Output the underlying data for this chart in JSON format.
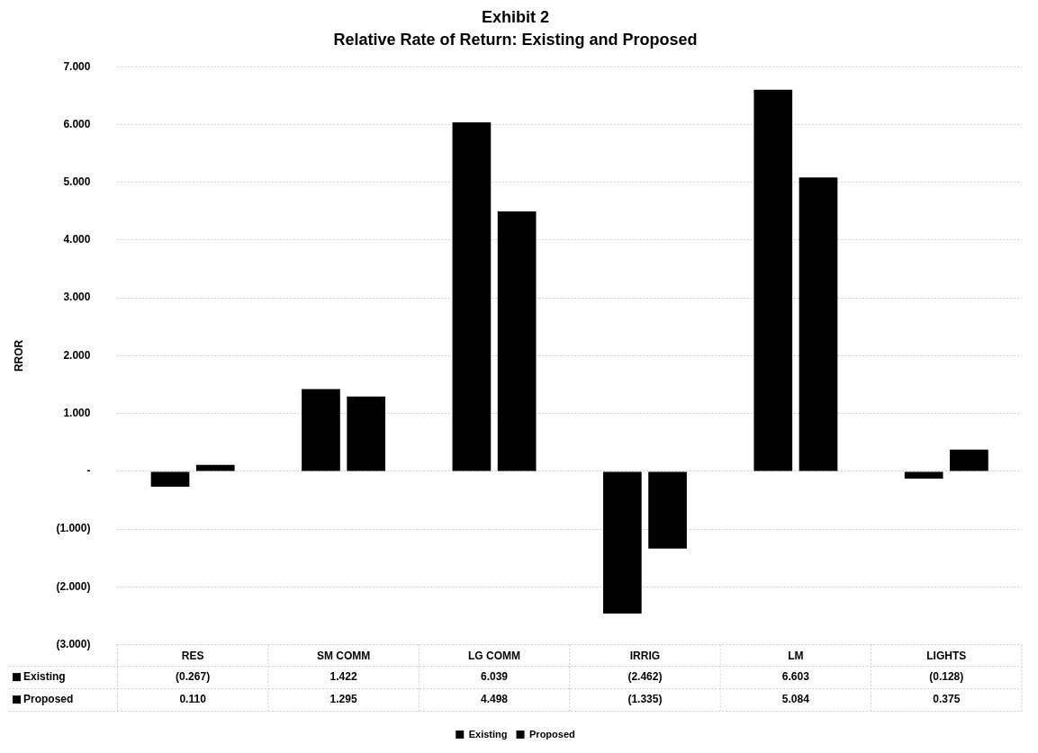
{
  "chart_data": {
    "type": "bar",
    "title": "Exhibit 2",
    "subtitle": "Relative Rate of Return: Existing and Proposed",
    "ylabel": "RROR",
    "categories": [
      "RES",
      "SM COMM",
      "LG COMM",
      "IRRIG",
      "LM",
      "LIGHTS"
    ],
    "series": [
      {
        "name": "Existing",
        "color": "#000000",
        "values": [
          -0.267,
          1.422,
          6.039,
          -2.462,
          6.603,
          -0.128
        ],
        "value_labels": [
          "(0.267)",
          "1.422",
          "6.039",
          "(2.462)",
          "6.603",
          "(0.128)"
        ]
      },
      {
        "name": "Proposed",
        "color": "#000000",
        "values": [
          0.11,
          1.295,
          4.498,
          -1.335,
          5.084,
          0.375
        ],
        "value_labels": [
          "0.110",
          "1.295",
          "4.498",
          "(1.335)",
          "5.084",
          "0.375"
        ]
      }
    ],
    "ylim": [
      -3,
      7
    ],
    "yticks": [
      {
        "value": -3,
        "label": "(3.000)"
      },
      {
        "value": -2,
        "label": "(2.000)"
      },
      {
        "value": -1,
        "label": "(1.000)"
      },
      {
        "value": 0,
        "label": "-"
      },
      {
        "value": 1,
        "label": "1.000"
      },
      {
        "value": 2,
        "label": "2.000"
      },
      {
        "value": 3,
        "label": "3.000"
      },
      {
        "value": 4,
        "label": "4.000"
      },
      {
        "value": 5,
        "label": "5.000"
      },
      {
        "value": 6,
        "label": "6.000"
      },
      {
        "value": 7,
        "label": "7.000"
      }
    ],
    "grid": "y",
    "legend": "bottom"
  }
}
